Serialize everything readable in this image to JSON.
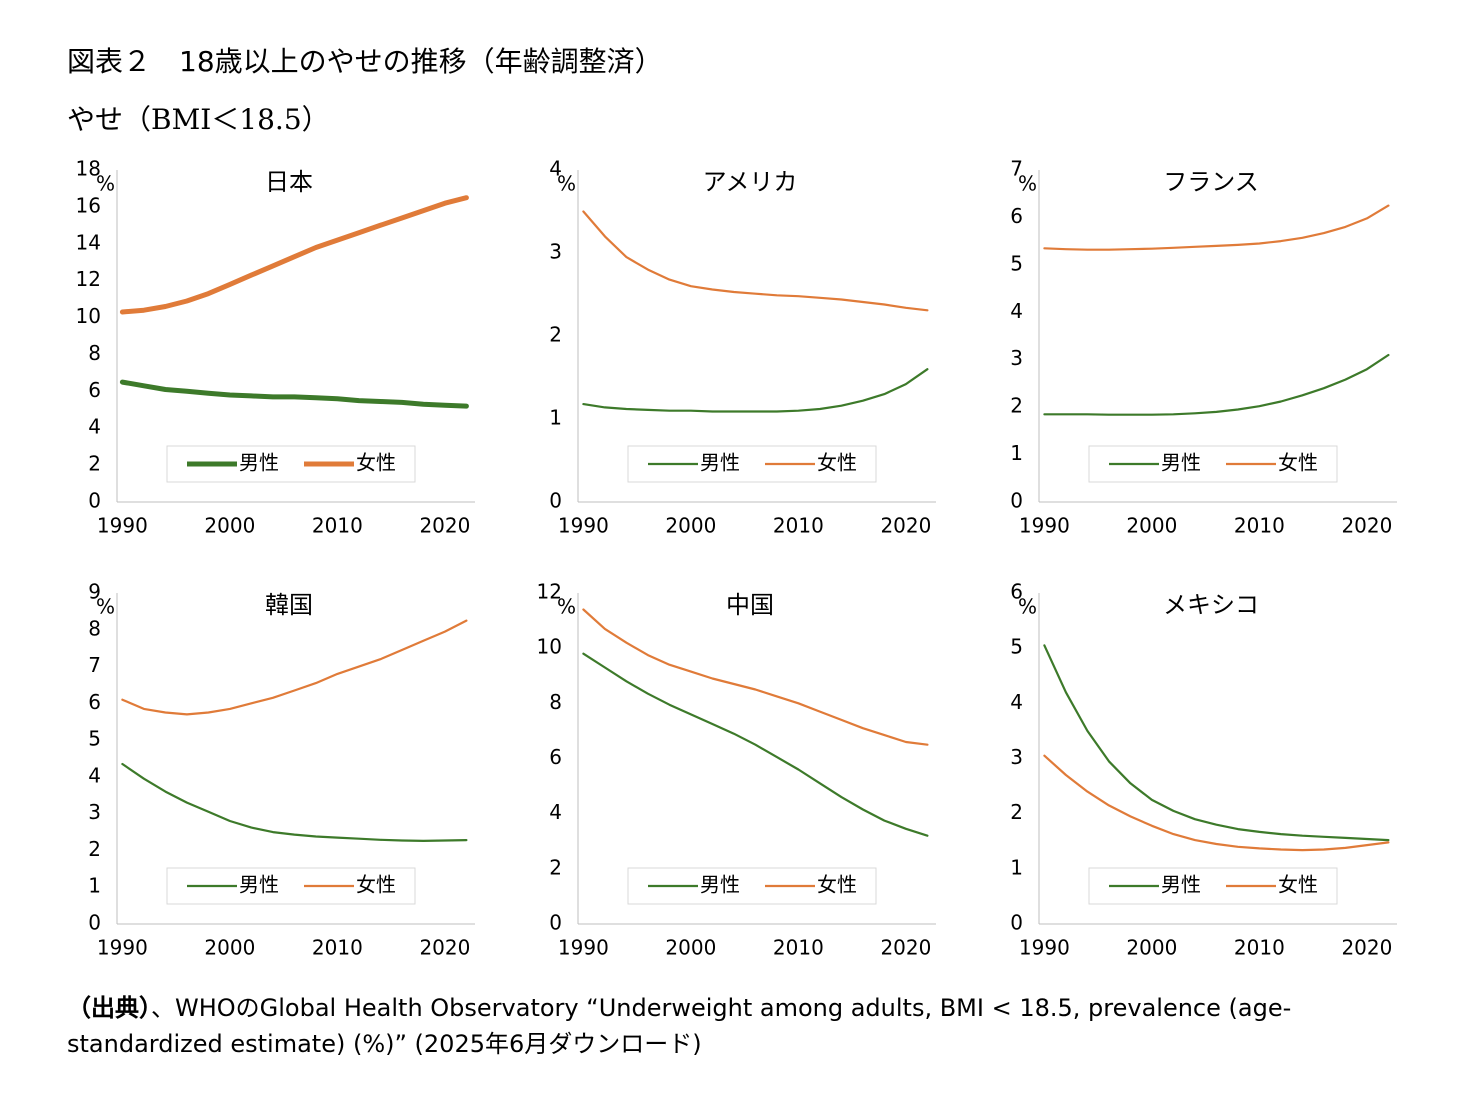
{
  "title": "図表２　18歳以上のやせの推移（年齢調整済）",
  "subtitle": "やせ（BMI＜18.5）",
  "source_label": "（出典）",
  "source": "、WHOのGlobal Health Observatory “Underweight among adults, BMI < 18.5, prevalence (age-standardized estimate) (%)” (2025年6月ダウンロード)",
  "chart_data": [
    {
      "type": "line",
      "title": "日本",
      "unit": "%",
      "line_width": 5,
      "x": [
        1990,
        1992,
        1994,
        1996,
        1998,
        2000,
        2002,
        2004,
        2006,
        2008,
        2010,
        2012,
        2014,
        2016,
        2018,
        2020,
        2022
      ],
      "xlim": [
        1989.5,
        2022.8
      ],
      "xticks": [
        1990,
        2000,
        2010,
        2020
      ],
      "ylim": [
        0,
        18
      ],
      "yticks": [
        0,
        2,
        4,
        6,
        8,
        10,
        12,
        14,
        16,
        18
      ],
      "series": [
        {
          "name": "男性",
          "color": "#3d7a2a",
          "values": [
            6.5,
            6.3,
            6.1,
            6.0,
            5.9,
            5.8,
            5.75,
            5.7,
            5.7,
            5.65,
            5.6,
            5.5,
            5.45,
            5.4,
            5.3,
            5.25,
            5.2
          ]
        },
        {
          "name": "女性",
          "color": "#e07b39",
          "values": [
            10.3,
            10.4,
            10.6,
            10.9,
            11.3,
            11.8,
            12.3,
            12.8,
            13.3,
            13.8,
            14.2,
            14.6,
            15.0,
            15.4,
            15.8,
            16.2,
            16.5
          ]
        }
      ]
    },
    {
      "type": "line",
      "title": "アメリカ",
      "unit": "%",
      "line_width": 2.2,
      "x": [
        1990,
        1992,
        1994,
        1996,
        1998,
        2000,
        2002,
        2004,
        2006,
        2008,
        2010,
        2012,
        2014,
        2016,
        2018,
        2020,
        2022
      ],
      "xlim": [
        1989.5,
        2022.8
      ],
      "xticks": [
        1990,
        2000,
        2010,
        2020
      ],
      "ylim": [
        0,
        4
      ],
      "yticks": [
        0,
        1,
        2,
        3,
        4
      ],
      "series": [
        {
          "name": "男性",
          "color": "#3d7a2a",
          "values": [
            1.18,
            1.14,
            1.12,
            1.11,
            1.1,
            1.1,
            1.09,
            1.09,
            1.09,
            1.09,
            1.1,
            1.12,
            1.16,
            1.22,
            1.3,
            1.42,
            1.6
          ]
        },
        {
          "name": "女性",
          "color": "#e07b39",
          "values": [
            3.5,
            3.2,
            2.95,
            2.8,
            2.68,
            2.6,
            2.56,
            2.53,
            2.51,
            2.49,
            2.48,
            2.46,
            2.44,
            2.41,
            2.38,
            2.34,
            2.31
          ]
        }
      ]
    },
    {
      "type": "line",
      "title": "フランス",
      "unit": "%",
      "line_width": 2.2,
      "x": [
        1990,
        1992,
        1994,
        1996,
        1998,
        2000,
        2002,
        2004,
        2006,
        2008,
        2010,
        2012,
        2014,
        2016,
        2018,
        2020,
        2022
      ],
      "xlim": [
        1989.5,
        2022.8
      ],
      "xticks": [
        1990,
        2000,
        2010,
        2020
      ],
      "ylim": [
        0,
        7
      ],
      "yticks": [
        0,
        1,
        2,
        3,
        4,
        5,
        6,
        7
      ],
      "series": [
        {
          "name": "男性",
          "color": "#3d7a2a",
          "values": [
            1.85,
            1.85,
            1.85,
            1.84,
            1.84,
            1.84,
            1.85,
            1.87,
            1.9,
            1.95,
            2.02,
            2.12,
            2.25,
            2.4,
            2.58,
            2.8,
            3.1
          ]
        },
        {
          "name": "女性",
          "color": "#e07b39",
          "values": [
            5.35,
            5.33,
            5.32,
            5.32,
            5.33,
            5.34,
            5.36,
            5.38,
            5.4,
            5.42,
            5.45,
            5.5,
            5.57,
            5.67,
            5.8,
            5.98,
            6.25
          ]
        }
      ]
    },
    {
      "type": "line",
      "title": "韓国",
      "unit": "%",
      "line_width": 2.2,
      "x": [
        1990,
        1992,
        1994,
        1996,
        1998,
        2000,
        2002,
        2004,
        2006,
        2008,
        2010,
        2012,
        2014,
        2016,
        2018,
        2020,
        2022
      ],
      "xlim": [
        1989.5,
        2022.8
      ],
      "xticks": [
        1990,
        2000,
        2010,
        2020
      ],
      "ylim": [
        0,
        9
      ],
      "yticks": [
        0,
        1,
        2,
        3,
        4,
        5,
        6,
        7,
        8,
        9
      ],
      "series": [
        {
          "name": "男性",
          "color": "#3d7a2a",
          "values": [
            4.35,
            3.95,
            3.6,
            3.3,
            3.05,
            2.8,
            2.62,
            2.5,
            2.43,
            2.38,
            2.35,
            2.32,
            2.29,
            2.27,
            2.26,
            2.27,
            2.28
          ]
        },
        {
          "name": "女性",
          "color": "#e07b39",
          "values": [
            6.1,
            5.85,
            5.75,
            5.7,
            5.75,
            5.85,
            6.0,
            6.15,
            6.35,
            6.55,
            6.8,
            7.0,
            7.2,
            7.45,
            7.7,
            7.95,
            8.25
          ]
        }
      ]
    },
    {
      "type": "line",
      "title": "中国",
      "unit": "%",
      "line_width": 2.2,
      "x": [
        1990,
        1992,
        1994,
        1996,
        1998,
        2000,
        2002,
        2004,
        2006,
        2008,
        2010,
        2012,
        2014,
        2016,
        2018,
        2020,
        2022
      ],
      "xlim": [
        1989.5,
        2022.8
      ],
      "xticks": [
        1990,
        2000,
        2010,
        2020
      ],
      "ylim": [
        0,
        12
      ],
      "yticks": [
        0,
        2,
        4,
        6,
        8,
        10,
        12
      ],
      "series": [
        {
          "name": "男性",
          "color": "#3d7a2a",
          "values": [
            9.8,
            9.3,
            8.8,
            8.35,
            7.95,
            7.6,
            7.25,
            6.9,
            6.5,
            6.05,
            5.6,
            5.1,
            4.6,
            4.15,
            3.75,
            3.45,
            3.2
          ]
        },
        {
          "name": "女性",
          "color": "#e07b39",
          "values": [
            11.4,
            10.7,
            10.2,
            9.75,
            9.4,
            9.15,
            8.9,
            8.7,
            8.5,
            8.25,
            8.0,
            7.7,
            7.4,
            7.1,
            6.85,
            6.6,
            6.5
          ]
        }
      ]
    },
    {
      "type": "line",
      "title": "メキシコ",
      "unit": "%",
      "line_width": 2.2,
      "x": [
        1990,
        1992,
        1994,
        1996,
        1998,
        2000,
        2002,
        2004,
        2006,
        2008,
        2010,
        2012,
        2014,
        2016,
        2018,
        2020,
        2022
      ],
      "xlim": [
        1989.5,
        2022.8
      ],
      "xticks": [
        1990,
        2000,
        2010,
        2020
      ],
      "ylim": [
        0,
        6
      ],
      "yticks": [
        0,
        1,
        2,
        3,
        4,
        5,
        6
      ],
      "series": [
        {
          "name": "男性",
          "color": "#3d7a2a",
          "values": [
            5.05,
            4.2,
            3.5,
            2.95,
            2.55,
            2.25,
            2.05,
            1.9,
            1.8,
            1.72,
            1.67,
            1.63,
            1.6,
            1.58,
            1.56,
            1.54,
            1.52
          ]
        },
        {
          "name": "女性",
          "color": "#e07b39",
          "values": [
            3.05,
            2.7,
            2.4,
            2.15,
            1.95,
            1.78,
            1.63,
            1.52,
            1.45,
            1.4,
            1.37,
            1.35,
            1.34,
            1.35,
            1.38,
            1.43,
            1.48
          ]
        }
      ]
    }
  ]
}
